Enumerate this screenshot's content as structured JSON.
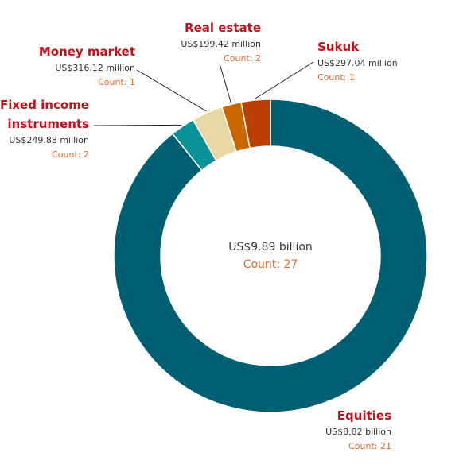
{
  "chart_data": {
    "type": "pie",
    "variant": "donut",
    "slices": [
      {
        "name": "Equities",
        "value_label": "US$8.82 billion",
        "count_label": "Count: 21",
        "value": 8820,
        "count": 21,
        "color": "#005f73"
      },
      {
        "name": "Fixed income instruments",
        "name_lines": [
          "Fixed income",
          "instruments"
        ],
        "value_label": "US$249.88 million",
        "count_label": "Count: 2",
        "value": 249.88,
        "count": 2,
        "color": "#0a9396"
      },
      {
        "name": "Money market",
        "value_label": "US$316.12 million",
        "count_label": "Count: 1",
        "value": 316.12,
        "count": 1,
        "color": "#e9d8a6"
      },
      {
        "name": "Real estate",
        "value_label": "US$199.42 million",
        "count_label": "Count: 2",
        "value": 199.42,
        "count": 2,
        "color": "#ca6702"
      },
      {
        "name": "Sukuk",
        "value_label": "US$297.04 million",
        "count_label": "Count: 1",
        "value": 297.04,
        "count": 1,
        "color": "#bb3e03"
      }
    ],
    "total": {
      "value_label": "US$9.89 billion",
      "count_label": "Count: 27"
    },
    "value_unit": "US$ million"
  }
}
